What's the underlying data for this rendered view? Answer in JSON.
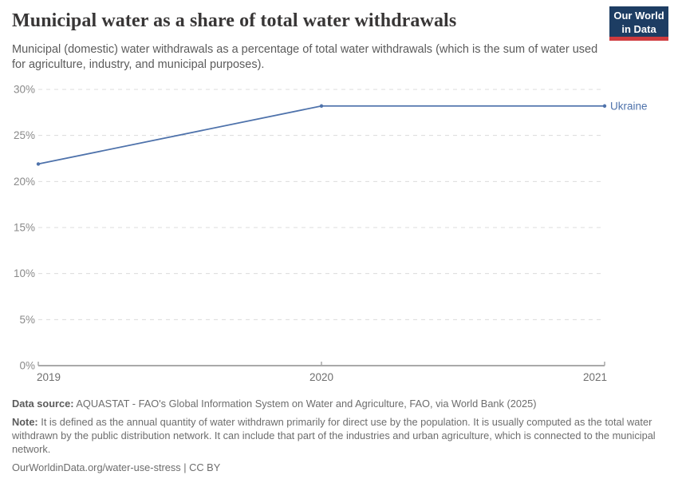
{
  "header": {
    "title": "Municipal water as a share of total water withdrawals",
    "subtitle": "Municipal (domestic) water withdrawals as a percentage of total water withdrawals (which is the sum of water used for agriculture, industry, and municipal purposes).",
    "logo": {
      "line1": "Our World",
      "line2": "in Data",
      "bg_color": "#1d3d63",
      "accent_color": "#cf3b3e"
    }
  },
  "chart_data": {
    "type": "line",
    "title": "Municipal water as a share of total water withdrawals",
    "x": [
      2019,
      2020,
      2021
    ],
    "xtick_labels": [
      "2019",
      "2020",
      "2021"
    ],
    "series": [
      {
        "name": "Ukraine",
        "values": [
          21.9,
          28.2,
          28.2
        ],
        "color": "#4e72ab"
      }
    ],
    "ylim": [
      0,
      30
    ],
    "yticks": [
      0,
      5,
      10,
      15,
      20,
      25,
      30
    ],
    "ytick_labels": [
      "0%",
      "5%",
      "10%",
      "15%",
      "20%",
      "25%",
      "30%"
    ],
    "xlabel": "",
    "ylabel": "",
    "grid": "horizontal-dashed",
    "grid_color": "#dcdcdc",
    "axis_color": "#a9a9a9",
    "legend_position": "line-end-label"
  },
  "footer": {
    "data_source_label": "Data source:",
    "data_source": "AQUASTAT - FAO's Global Information System on Water and Agriculture, FAO, via World Bank (2025)",
    "note_label": "Note:",
    "note": "It is defined as the annual quantity of water withdrawn primarily for direct use by the population. It is usually computed as the total water withdrawn by the public distribution network. It can include that part of the industries and urban agriculture, which is connected to the municipal network.",
    "link": "OurWorldinData.org/water-use-stress | CC BY"
  }
}
